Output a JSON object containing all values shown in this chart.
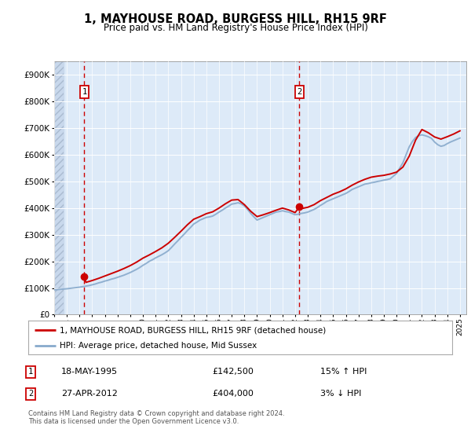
{
  "title": "1, MAYHOUSE ROAD, BURGESS HILL, RH15 9RF",
  "subtitle": "Price paid vs. HM Land Registry's House Price Index (HPI)",
  "ylim": [
    0,
    950000
  ],
  "yticks": [
    0,
    100000,
    200000,
    300000,
    400000,
    500000,
    600000,
    700000,
    800000,
    900000
  ],
  "ytick_labels": [
    "£0",
    "£100K",
    "£200K",
    "£300K",
    "£400K",
    "£500K",
    "£600K",
    "£700K",
    "£800K",
    "£900K"
  ],
  "xlim_start": 1993.0,
  "xlim_end": 2025.5,
  "xticks": [
    1993,
    1994,
    1995,
    1996,
    1997,
    1998,
    1999,
    2000,
    2001,
    2002,
    2003,
    2004,
    2005,
    2006,
    2007,
    2008,
    2009,
    2010,
    2011,
    2012,
    2013,
    2014,
    2015,
    2016,
    2017,
    2018,
    2019,
    2020,
    2021,
    2022,
    2023,
    2024,
    2025
  ],
  "sale1_x": 1995.38,
  "sale1_y": 142500,
  "sale2_x": 2012.33,
  "sale2_y": 404000,
  "line1_color": "#cc0000",
  "line2_color": "#88aacc",
  "background_color": "#ddeaf8",
  "footer_text": "Contains HM Land Registry data © Crown copyright and database right 2024.\nThis data is licensed under the Open Government Licence v3.0.",
  "legend_line1": "1, MAYHOUSE ROAD, BURGESS HILL, RH15 9RF (detached house)",
  "legend_line2": "HPI: Average price, detached house, Mid Sussex",
  "annotation1_date": "18-MAY-1995",
  "annotation1_price": "£142,500",
  "annotation1_hpi": "15% ↑ HPI",
  "annotation2_date": "27-APR-2012",
  "annotation2_price": "£404,000",
  "annotation2_hpi": "3% ↓ HPI",
  "hpi_data_x": [
    1993.0,
    1993.25,
    1993.5,
    1993.75,
    1994.0,
    1994.25,
    1994.5,
    1994.75,
    1995.0,
    1995.25,
    1995.5,
    1995.75,
    1996.0,
    1996.25,
    1996.5,
    1996.75,
    1997.0,
    1997.25,
    1997.5,
    1997.75,
    1998.0,
    1998.25,
    1998.5,
    1998.75,
    1999.0,
    1999.25,
    1999.5,
    1999.75,
    2000.0,
    2000.25,
    2000.5,
    2000.75,
    2001.0,
    2001.25,
    2001.5,
    2001.75,
    2002.0,
    2002.25,
    2002.5,
    2002.75,
    2003.0,
    2003.25,
    2003.5,
    2003.75,
    2004.0,
    2004.25,
    2004.5,
    2004.75,
    2005.0,
    2005.25,
    2005.5,
    2005.75,
    2006.0,
    2006.25,
    2006.5,
    2006.75,
    2007.0,
    2007.25,
    2007.5,
    2007.75,
    2008.0,
    2008.25,
    2008.5,
    2008.75,
    2009.0,
    2009.25,
    2009.5,
    2009.75,
    2010.0,
    2010.25,
    2010.5,
    2010.75,
    2011.0,
    2011.25,
    2011.5,
    2011.75,
    2012.0,
    2012.25,
    2012.5,
    2012.75,
    2013.0,
    2013.25,
    2013.5,
    2013.75,
    2014.0,
    2014.25,
    2014.5,
    2014.75,
    2015.0,
    2015.25,
    2015.5,
    2015.75,
    2016.0,
    2016.25,
    2016.5,
    2016.75,
    2017.0,
    2017.25,
    2017.5,
    2017.75,
    2018.0,
    2018.25,
    2018.5,
    2018.75,
    2019.0,
    2019.25,
    2019.5,
    2019.75,
    2020.0,
    2020.25,
    2020.5,
    2020.75,
    2021.0,
    2021.25,
    2021.5,
    2021.75,
    2022.0,
    2022.25,
    2022.5,
    2022.75,
    2023.0,
    2023.25,
    2023.5,
    2023.75,
    2024.0,
    2024.25,
    2024.5,
    2024.75,
    2025.0
  ],
  "hpi_data_y": [
    93000,
    94000,
    95000,
    96000,
    97000,
    98500,
    100000,
    101500,
    103000,
    105000,
    107000,
    109000,
    112000,
    115000,
    119000,
    122000,
    126000,
    129000,
    133000,
    136000,
    140000,
    144000,
    148000,
    153000,
    158000,
    164000,
    170000,
    177000,
    185000,
    192000,
    200000,
    206000,
    213000,
    219000,
    225000,
    232000,
    240000,
    252000,
    265000,
    277000,
    290000,
    302000,
    315000,
    327000,
    340000,
    347000,
    355000,
    360000,
    365000,
    367000,
    370000,
    377000,
    385000,
    392000,
    400000,
    407000,
    415000,
    417000,
    420000,
    416000,
    408000,
    395000,
    380000,
    367000,
    355000,
    360000,
    365000,
    370000,
    375000,
    380000,
    385000,
    387000,
    390000,
    387000,
    385000,
    380000,
    375000,
    377000,
    380000,
    382000,
    385000,
    390000,
    395000,
    402000,
    410000,
    417000,
    425000,
    430000,
    435000,
    440000,
    445000,
    450000,
    455000,
    462000,
    470000,
    475000,
    480000,
    485000,
    490000,
    492000,
    495000,
    497000,
    500000,
    502000,
    505000,
    507000,
    510000,
    520000,
    530000,
    550000,
    570000,
    600000,
    630000,
    650000,
    665000,
    672000,
    675000,
    672000,
    668000,
    662000,
    648000,
    638000,
    632000,
    635000,
    642000,
    648000,
    653000,
    658000,
    663000
  ],
  "price_data_x": [
    1995.38,
    1995.5,
    1996.0,
    1996.5,
    1997.0,
    1997.5,
    1998.0,
    1998.5,
    1999.0,
    1999.5,
    2000.0,
    2000.5,
    2001.0,
    2001.5,
    2002.0,
    2002.5,
    2003.0,
    2003.5,
    2004.0,
    2004.5,
    2005.0,
    2005.5,
    2006.0,
    2006.5,
    2007.0,
    2007.5,
    2008.0,
    2008.5,
    2009.0,
    2009.5,
    2010.0,
    2010.5,
    2011.0,
    2011.5,
    2012.0,
    2012.33,
    2012.5,
    2013.0,
    2013.5,
    2014.0,
    2014.5,
    2015.0,
    2015.5,
    2016.0,
    2016.5,
    2017.0,
    2017.5,
    2018.0,
    2018.5,
    2019.0,
    2019.5,
    2020.0,
    2020.5,
    2021.0,
    2021.5,
    2022.0,
    2022.5,
    2023.0,
    2023.5,
    2024.0,
    2024.5,
    2025.0
  ],
  "price_data_y": [
    142500,
    121000,
    128000,
    136000,
    145000,
    154000,
    163000,
    173000,
    184000,
    197000,
    212000,
    224000,
    237000,
    251000,
    268000,
    290000,
    313000,
    337000,
    358000,
    368000,
    379000,
    386000,
    400000,
    416000,
    430000,
    432000,
    413000,
    388000,
    368000,
    375000,
    383000,
    392000,
    400000,
    393000,
    383000,
    404000,
    398000,
    403000,
    413000,
    428000,
    440000,
    452000,
    461000,
    472000,
    486000,
    498000,
    508000,
    516000,
    520000,
    523000,
    528000,
    535000,
    554000,
    595000,
    655000,
    695000,
    683000,
    667000,
    659000,
    668000,
    678000,
    690000
  ]
}
